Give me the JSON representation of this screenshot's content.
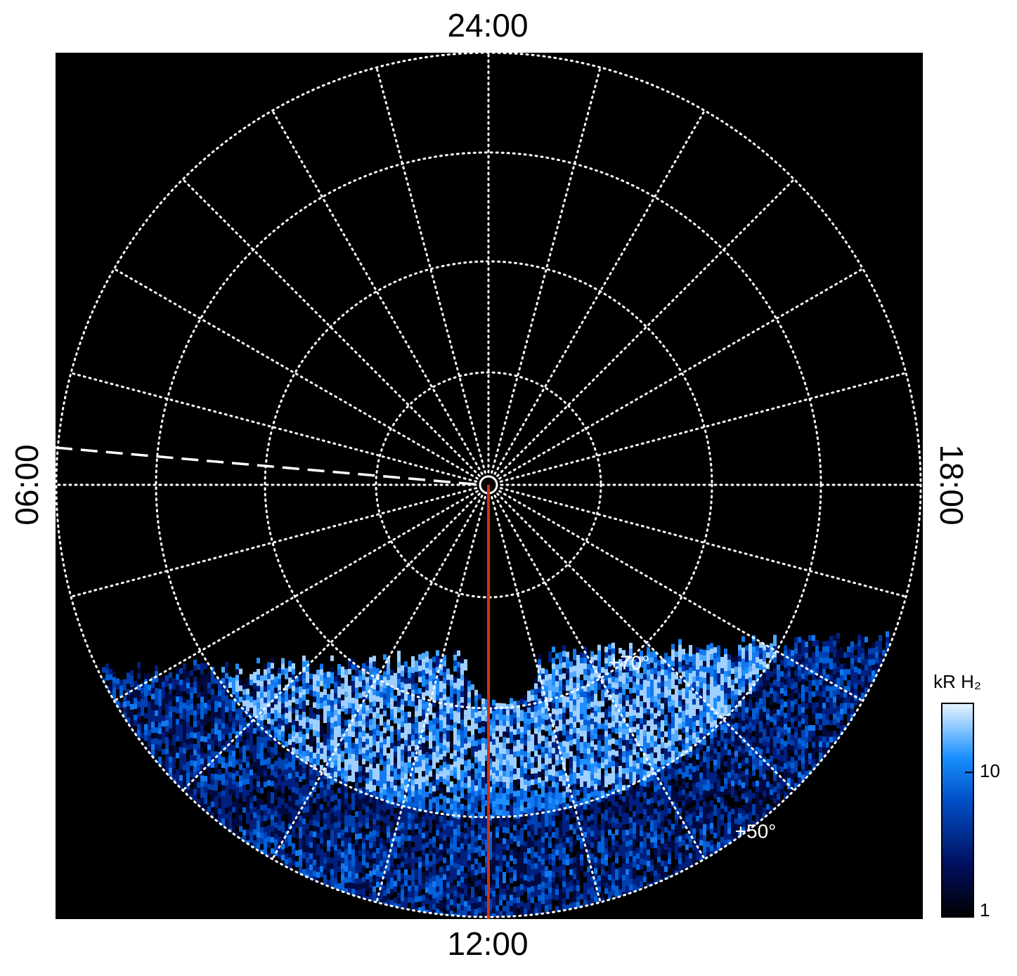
{
  "chart_data": {
    "type": "polar-map",
    "local_time_labels": {
      "top": "24:00",
      "bottom": "12:00",
      "left": "06:00",
      "right": "18:00"
    },
    "latitude_labels": [
      "+70°",
      "+50°"
    ],
    "colorbar": {
      "label": "kR H₂",
      "log": true,
      "lim": [
        1,
        30
      ],
      "ticks": [
        1,
        10
      ]
    }
  }
}
